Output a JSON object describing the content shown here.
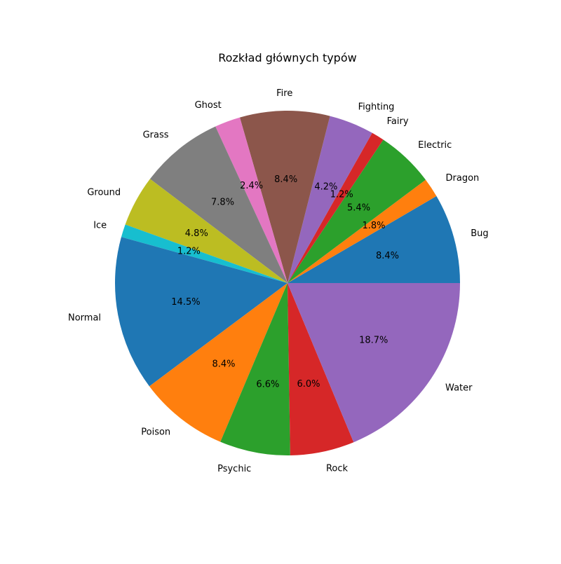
{
  "chart_data": {
    "type": "pie",
    "title": "Rozkład głównych typów",
    "start_angle": "0 deg (3 o'clock)",
    "direction": "counterclockwise",
    "slices": [
      {
        "label": "Bug",
        "value": 8.4,
        "pct_label": "8.4%",
        "color": "#1f77b4"
      },
      {
        "label": "Dragon",
        "value": 1.8,
        "pct_label": "1.8%",
        "color": "#ff7f0e"
      },
      {
        "label": "Electric",
        "value": 5.4,
        "pct_label": "5.4%",
        "color": "#2ca02c"
      },
      {
        "label": "Fairy",
        "value": 1.2,
        "pct_label": "1.2%",
        "color": "#d62728"
      },
      {
        "label": "Fighting",
        "value": 4.2,
        "pct_label": "4.2%",
        "color": "#9467bd"
      },
      {
        "label": "Fire",
        "value": 8.4,
        "pct_label": "8.4%",
        "color": "#8c564b"
      },
      {
        "label": "Ghost",
        "value": 2.4,
        "pct_label": "2.4%",
        "color": "#e377c2"
      },
      {
        "label": "Grass",
        "value": 7.8,
        "pct_label": "7.8%",
        "color": "#7f7f7f"
      },
      {
        "label": "Ground",
        "value": 4.8,
        "pct_label": "4.8%",
        "color": "#bcbd22"
      },
      {
        "label": "Ice",
        "value": 1.2,
        "pct_label": "1.2%",
        "color": "#17becf"
      },
      {
        "label": "Normal",
        "value": 14.5,
        "pct_label": "14.5%",
        "color": "#1f77b4"
      },
      {
        "label": "Poison",
        "value": 8.4,
        "pct_label": "8.4%",
        "color": "#ff7f0e"
      },
      {
        "label": "Psychic",
        "value": 6.6,
        "pct_label": "6.6%",
        "color": "#2ca02c"
      },
      {
        "label": "Rock",
        "value": 6.0,
        "pct_label": "6.0%",
        "color": "#d62728"
      },
      {
        "label": "Water",
        "value": 18.7,
        "pct_label": "18.7%",
        "color": "#9467bd"
      }
    ]
  }
}
